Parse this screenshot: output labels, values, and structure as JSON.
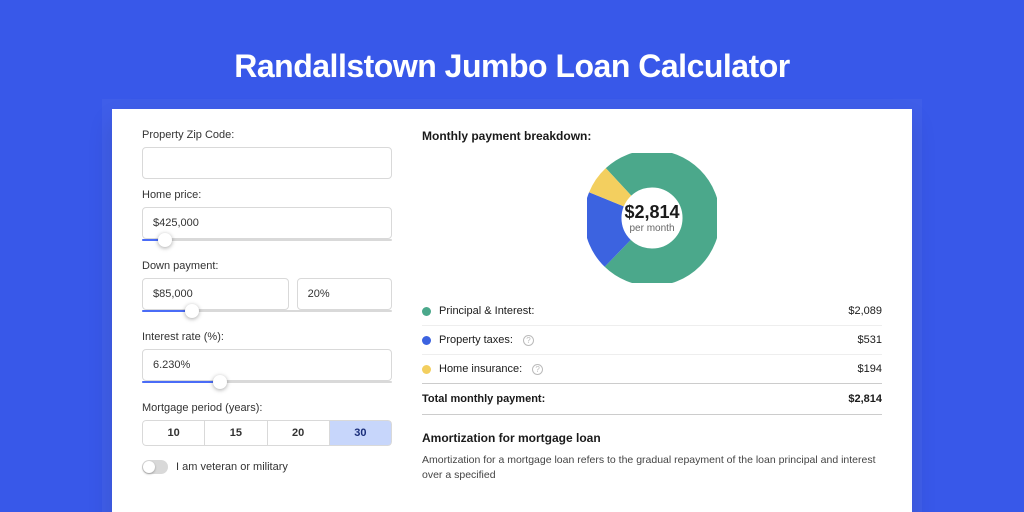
{
  "page": {
    "title": "Randallstown Jumbo Loan Calculator",
    "background": "#3858e9"
  },
  "form": {
    "zip": {
      "label": "Property Zip Code:",
      "value": ""
    },
    "home_price": {
      "label": "Home price:",
      "value": "$425,000",
      "slider_pct": 9
    },
    "down_payment": {
      "label": "Down payment:",
      "amount": "$85,000",
      "percent": "20%",
      "slider_pct": 20
    },
    "interest": {
      "label": "Interest rate (%):",
      "value": "6.230%",
      "slider_pct": 31
    },
    "period": {
      "label": "Mortgage period (years):",
      "options": [
        "10",
        "15",
        "20",
        "30"
      ],
      "selected": "30"
    },
    "veteran": {
      "label": "I am veteran or military",
      "checked": false
    }
  },
  "breakdown": {
    "title": "Monthly payment breakdown:",
    "donut": {
      "value": "$2,814",
      "sub": "per month",
      "slices": [
        {
          "pct": 74.2,
          "color": "#4ba88b"
        },
        {
          "pct": 18.9,
          "color": "#3c63e0"
        },
        {
          "pct": 6.9,
          "color": "#f3cf5f"
        }
      ],
      "inner_ratio": 0.62,
      "size": 130
    },
    "items": [
      {
        "label": "Principal & Interest:",
        "value": "$2,089",
        "color": "#4ba88b",
        "help": false
      },
      {
        "label": "Property taxes:",
        "value": "$531",
        "color": "#3c63e0",
        "help": true
      },
      {
        "label": "Home insurance:",
        "value": "$194",
        "color": "#f3cf5f",
        "help": true
      }
    ],
    "total": {
      "label": "Total monthly payment:",
      "value": "$2,814"
    }
  },
  "amortization": {
    "title": "Amortization for mortgage loan",
    "body": "Amortization for a mortgage loan refers to the gradual repayment of the loan principal and interest over a specified"
  }
}
